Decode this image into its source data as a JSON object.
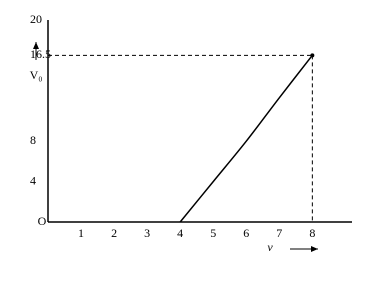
{
  "chart_data": {
    "type": "line",
    "x_label": "ν",
    "y_label": "V₀",
    "x": [
      4,
      5,
      6,
      7,
      8
    ],
    "series": [
      {
        "color": "#000000",
        "values": [
          0,
          4,
          8,
          12.3,
          16.5
        ]
      }
    ],
    "xlim": [
      0,
      9.2
    ],
    "ylim": [
      0,
      20
    ],
    "xticks": [
      1,
      2,
      3,
      4,
      5,
      6,
      7,
      8
    ],
    "yticks": [
      {
        "value": 0,
        "label": "O"
      },
      4,
      8,
      16.5,
      20
    ],
    "grid": false
  }
}
